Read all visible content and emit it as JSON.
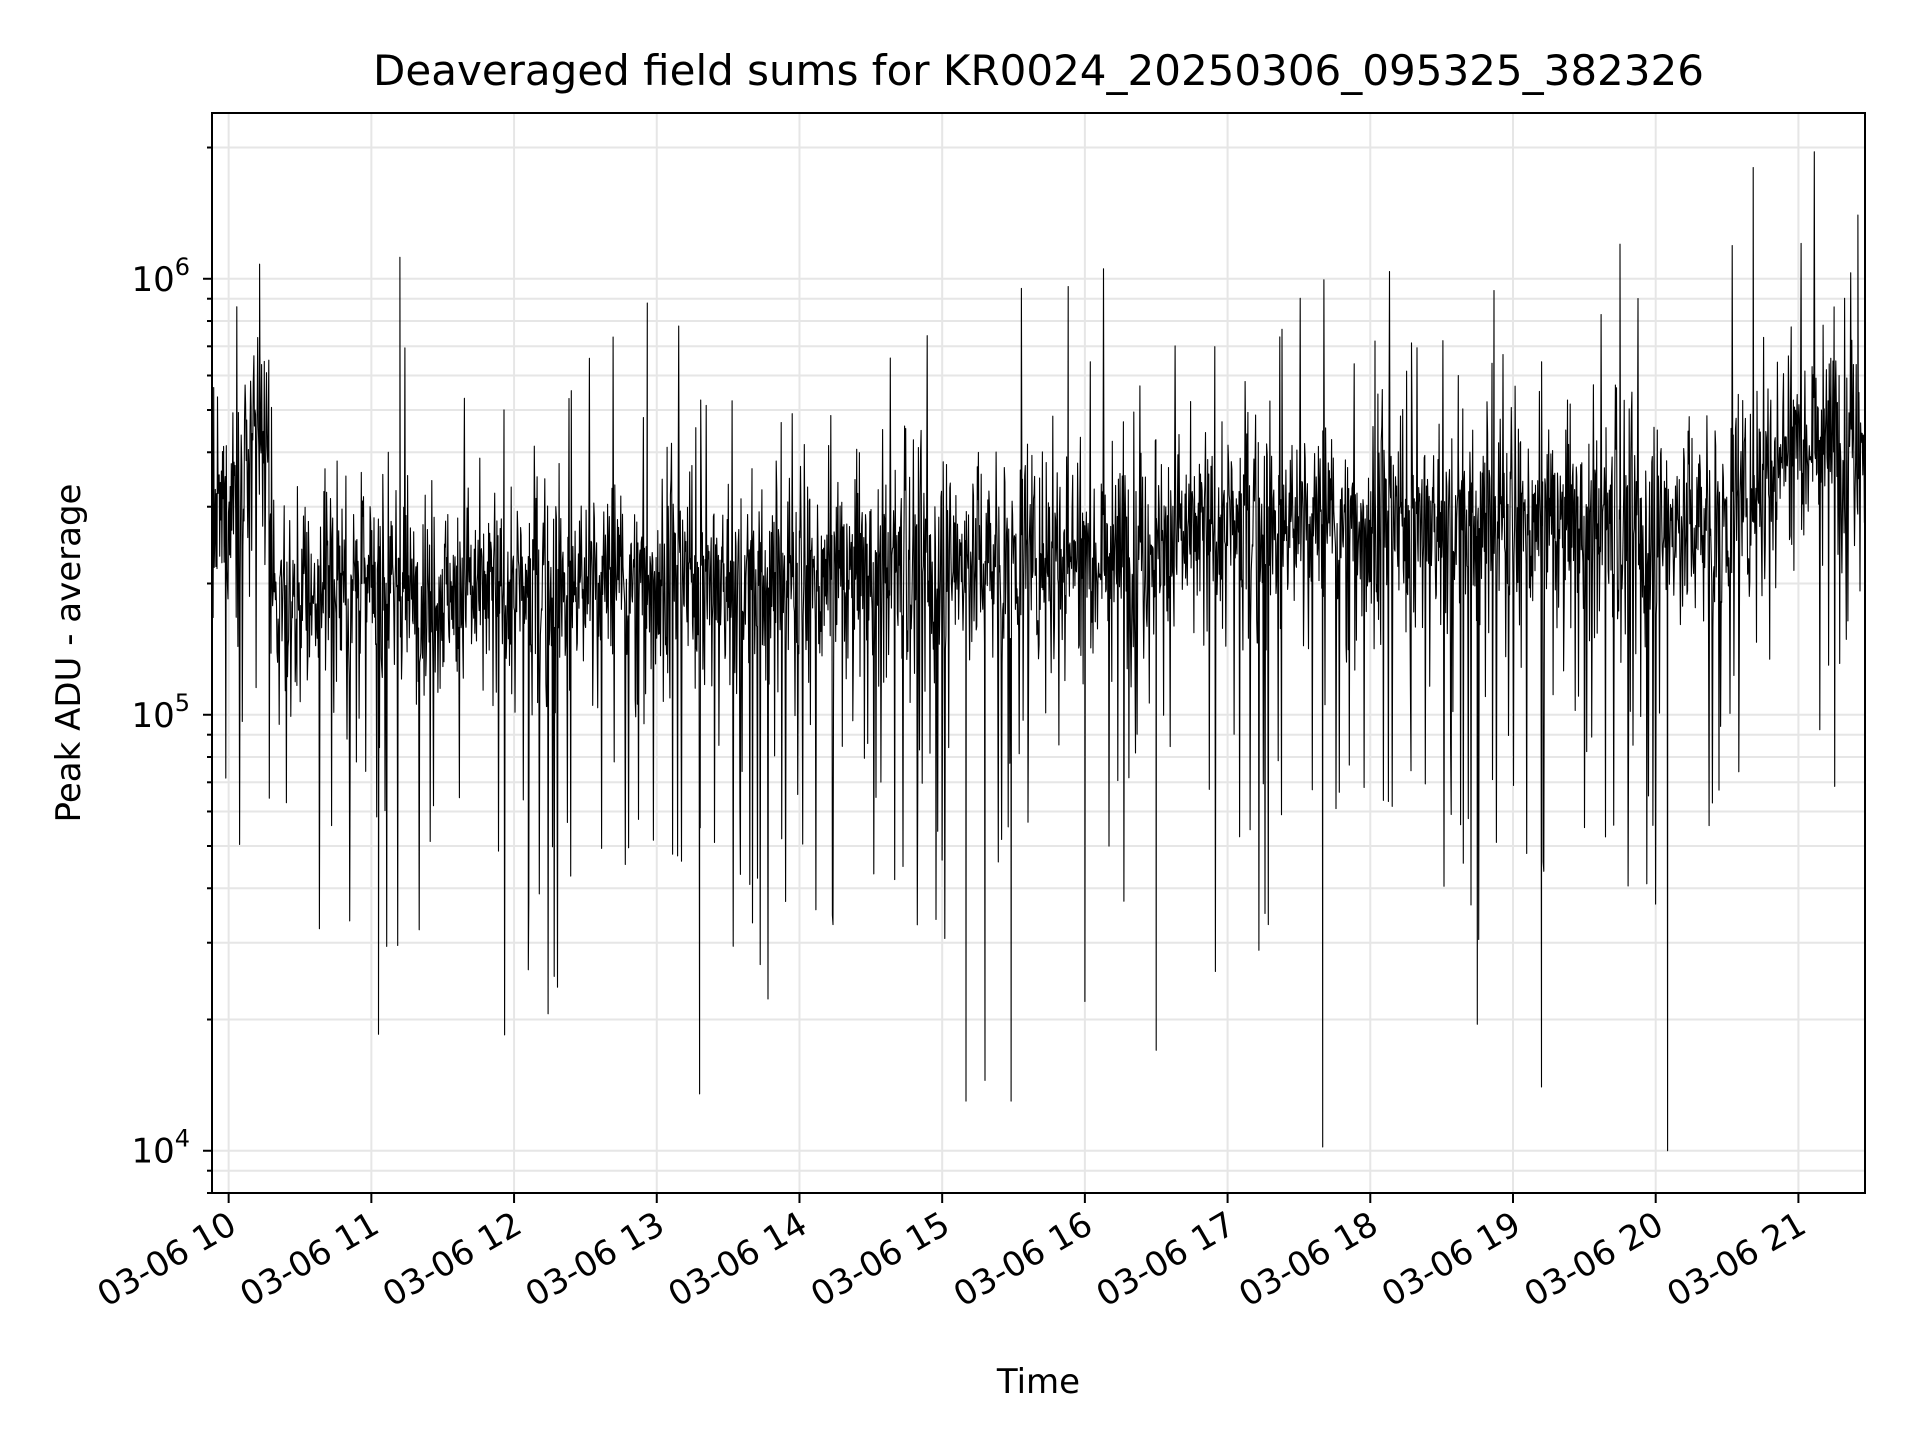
{
  "chart_data": {
    "type": "line",
    "title": "Deaveraged field sums for KR0024_20250306_095325_382326",
    "xlabel": "Time",
    "ylabel": "Peak ADU - average",
    "yscale": "log",
    "ylim": [
      8000,
      2400000
    ],
    "xlim": [
      "2025-03-06 09:53",
      "2025-03-06 21:28"
    ],
    "grid": true,
    "legend": "none",
    "line_color": "#000000",
    "grid_color": "#e6e6e6",
    "x_ticks": [
      {
        "t": "2025-03-06 10:00",
        "label": "03-06 10"
      },
      {
        "t": "2025-03-06 11:00",
        "label": "03-06 11"
      },
      {
        "t": "2025-03-06 12:00",
        "label": "03-06 12"
      },
      {
        "t": "2025-03-06 13:00",
        "label": "03-06 13"
      },
      {
        "t": "2025-03-06 14:00",
        "label": "03-06 14"
      },
      {
        "t": "2025-03-06 15:00",
        "label": "03-06 15"
      },
      {
        "t": "2025-03-06 16:00",
        "label": "03-06 16"
      },
      {
        "t": "2025-03-06 17:00",
        "label": "03-06 17"
      },
      {
        "t": "2025-03-06 18:00",
        "label": "03-06 18"
      },
      {
        "t": "2025-03-06 19:00",
        "label": "03-06 19"
      },
      {
        "t": "2025-03-06 20:00",
        "label": "03-06 20"
      },
      {
        "t": "2025-03-06 21:00",
        "label": "03-06 21"
      }
    ],
    "y_ticks": [
      {
        "value": 10000,
        "base": "10",
        "exp": "4"
      },
      {
        "value": 100000,
        "base": "10",
        "exp": "5"
      },
      {
        "value": 1000000,
        "base": "10",
        "exp": "6"
      }
    ],
    "series": [
      {
        "x": [
          "2025-03-06 09:53",
          "2025-03-06 10:05",
          "2025-03-06 10:15",
          "2025-03-06 10:20",
          "2025-03-06 10:30",
          "2025-03-06 10:45",
          "2025-03-06 11:00",
          "2025-03-06 11:30",
          "2025-03-06 12:00",
          "2025-03-06 12:30",
          "2025-03-06 13:00",
          "2025-03-06 13:30",
          "2025-03-06 14:00",
          "2025-03-06 14:30",
          "2025-03-06 15:00",
          "2025-03-06 15:30",
          "2025-03-06 16:00",
          "2025-03-06 16:30",
          "2025-03-06 17:00",
          "2025-03-06 17:30",
          "2025-03-06 18:00",
          "2025-03-06 18:30",
          "2025-03-06 19:00",
          "2025-03-06 19:30",
          "2025-03-06 20:00",
          "2025-03-06 20:30",
          "2025-03-06 21:00",
          "2025-03-06 21:28"
        ],
        "typical": [
          250000,
          350000,
          420000,
          180000,
          190000,
          200000,
          200000,
          195000,
          190000,
          200000,
          205000,
          200000,
          205000,
          215000,
          225000,
          230000,
          240000,
          250000,
          270000,
          275000,
          270000,
          275000,
          280000,
          275000,
          270000,
          280000,
          450000,
          450000
        ],
        "spikes_high": [
          {
            "t": "2025-03-06 10:13",
            "v": 1080000
          },
          {
            "t": "2025-03-06 11:12",
            "v": 1120000
          },
          {
            "t": "2025-03-06 12:56",
            "v": 880000
          },
          {
            "t": "2025-03-06 15:53",
            "v": 960000
          },
          {
            "t": "2025-03-06 18:02",
            "v": 720000
          },
          {
            "t": "2025-03-06 18:37",
            "v": 600000
          },
          {
            "t": "2025-03-06 18:52",
            "v": 940000
          },
          {
            "t": "2025-03-06 19:45",
            "v": 1200000
          },
          {
            "t": "2025-03-06 20:41",
            "v": 1800000
          },
          {
            "t": "2025-03-06 21:25",
            "v": 1400000
          }
        ],
        "spikes_low": [
          {
            "t": "2025-03-06 11:03",
            "v": 18500
          },
          {
            "t": "2025-03-06 12:06",
            "v": 26000
          },
          {
            "t": "2025-03-06 13:18",
            "v": 13500
          },
          {
            "t": "2025-03-06 15:10",
            "v": 13000
          },
          {
            "t": "2025-03-06 15:18",
            "v": 14500
          },
          {
            "t": "2025-03-06 15:29",
            "v": 13000
          },
          {
            "t": "2025-03-06 16:00",
            "v": 22000
          },
          {
            "t": "2025-03-06 16:30",
            "v": 17000
          },
          {
            "t": "2025-03-06 17:40",
            "v": 10200
          },
          {
            "t": "2025-03-06 18:45",
            "v": 19500
          },
          {
            "t": "2025-03-06 19:12",
            "v": 14000
          },
          {
            "t": "2025-03-06 20:05",
            "v": 10000
          }
        ]
      }
    ]
  }
}
